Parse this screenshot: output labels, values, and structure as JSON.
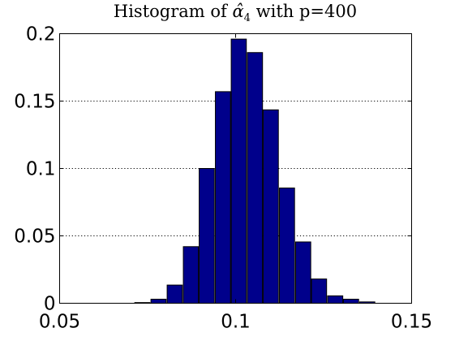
{
  "chart_data": {
    "type": "bar",
    "title": "Histogram of α̂4 with p=400",
    "title_parts": {
      "prefix": "Histogram of ",
      "symbol": "α̂",
      "subscript": "4",
      "suffix": " with p=400"
    },
    "xlabel": "",
    "ylabel": "",
    "xlim": [
      0.05,
      0.15
    ],
    "ylim": [
      0,
      0.2
    ],
    "xticks": [
      0.05,
      0.1,
      0.15
    ],
    "xtick_labels": [
      "0.05",
      "0.1",
      "0.15"
    ],
    "yticks": [
      0,
      0.05,
      0.1,
      0.15,
      0.2
    ],
    "ytick_labels": [
      "0",
      "0.05",
      "0.1",
      "0.15",
      "0.2"
    ],
    "grid": "y-dotted",
    "bar_width": 0.0043,
    "x": [
      0.0735,
      0.0781,
      0.0827,
      0.0873,
      0.0918,
      0.0964,
      0.1009,
      0.1055,
      0.11,
      0.1146,
      0.1192,
      0.1237,
      0.1283,
      0.1328,
      0.1374
    ],
    "values": [
      0.0005,
      0.003,
      0.0135,
      0.042,
      0.1,
      0.157,
      0.196,
      0.186,
      0.1435,
      0.0855,
      0.0455,
      0.018,
      0.0055,
      0.003,
      0.001
    ],
    "bar_color": "#00008B",
    "reference_line": {
      "x": 0.1,
      "style": "dotted"
    }
  }
}
